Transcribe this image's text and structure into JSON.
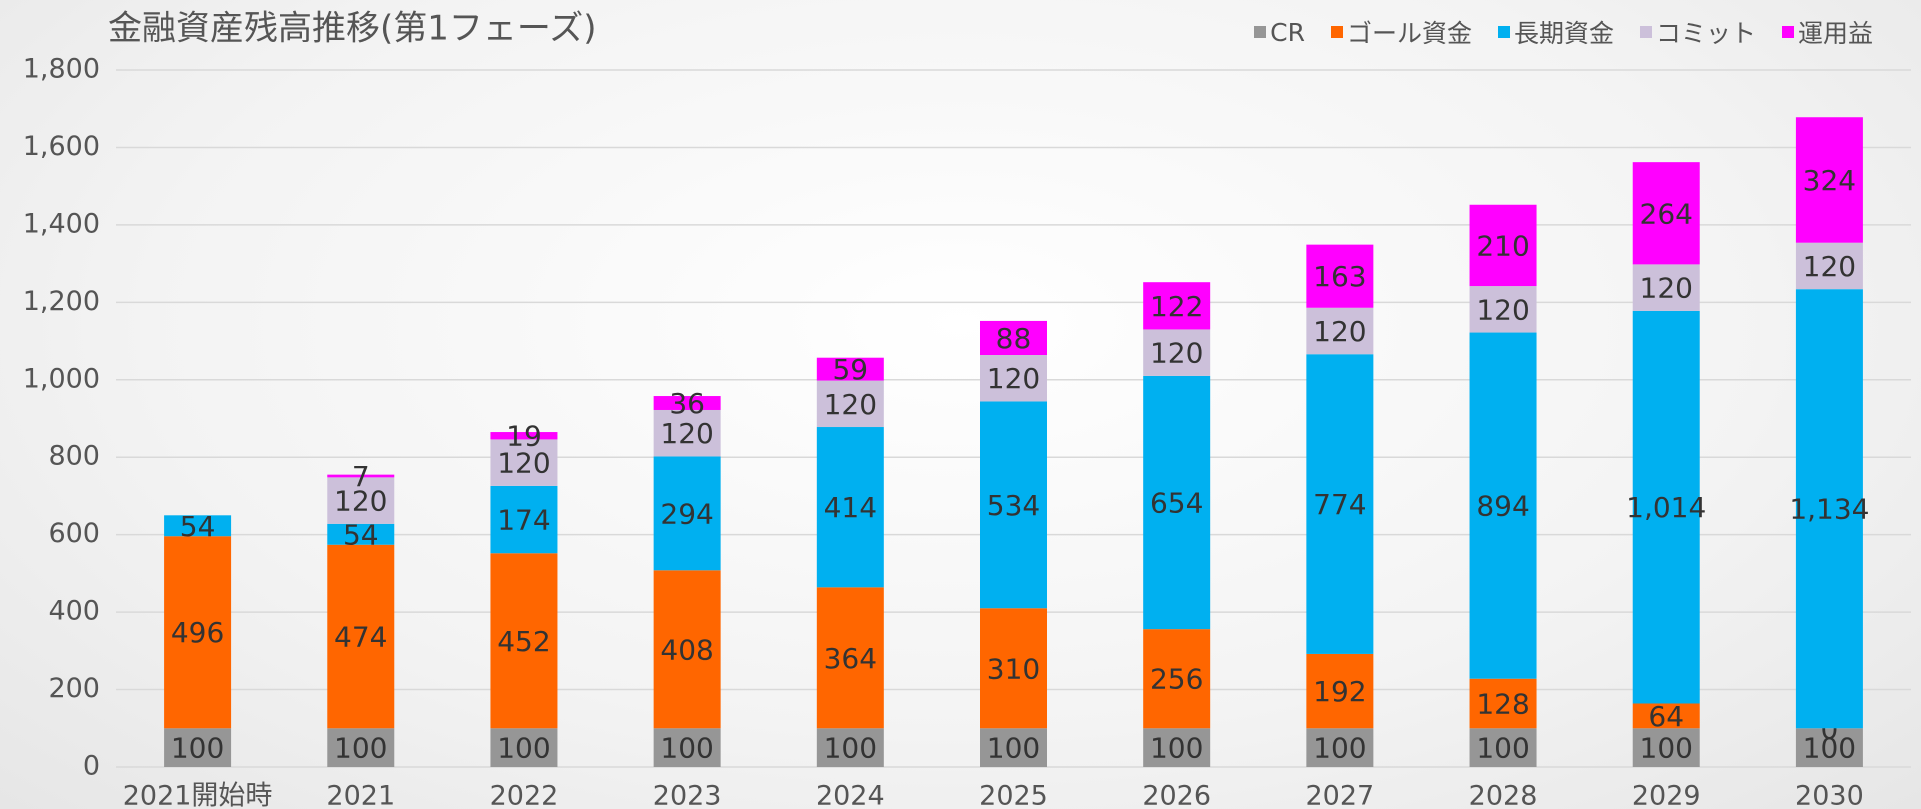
{
  "chart_data": {
    "type": "stacked_bar",
    "title": "金融資産残高推移(第1フェーズ)",
    "categories": [
      "2021開始時",
      "2021",
      "2022",
      "2023",
      "2024",
      "2025",
      "2026",
      "2027",
      "2028",
      "2029",
      "2030"
    ],
    "series": [
      {
        "name": "CR",
        "color": "#969696",
        "values": [
          100,
          100,
          100,
          100,
          100,
          100,
          100,
          100,
          100,
          100,
          100
        ]
      },
      {
        "name": "ゴール資金",
        "color": "#ff6600",
        "values": [
          496,
          474,
          452,
          408,
          364,
          310,
          256,
          192,
          128,
          64,
          0
        ]
      },
      {
        "name": "長期資金",
        "color": "#00b0f0",
        "values": [
          54,
          54,
          174,
          294,
          414,
          534,
          654,
          774,
          894,
          1014,
          1134
        ],
        "value_labels": [
          "54",
          "54",
          "174",
          "294",
          "414",
          "534",
          "654",
          "774",
          "894",
          "1,014",
          "1,134"
        ]
      },
      {
        "name": "コミット",
        "color": "#ccc0da",
        "values": [
          null,
          120,
          120,
          120,
          120,
          120,
          120,
          120,
          120,
          120,
          120
        ]
      },
      {
        "name": "運用益",
        "color": "#ff00ff",
        "values": [
          null,
          7,
          19,
          36,
          59,
          88,
          122,
          163,
          210,
          264,
          324
        ]
      }
    ],
    "ylim": [
      0,
      1800
    ],
    "yticks": [
      0,
      200,
      400,
      600,
      800,
      {
        "value": 1000,
        "label": "1,000"
      },
      {
        "value": 1200,
        "label": "1,200"
      },
      {
        "value": 1400,
        "label": "1,400"
      },
      {
        "value": 1600,
        "label": "1,600"
      },
      {
        "value": 1800,
        "label": "1,800"
      }
    ],
    "grid": true,
    "legend": "top-right"
  }
}
